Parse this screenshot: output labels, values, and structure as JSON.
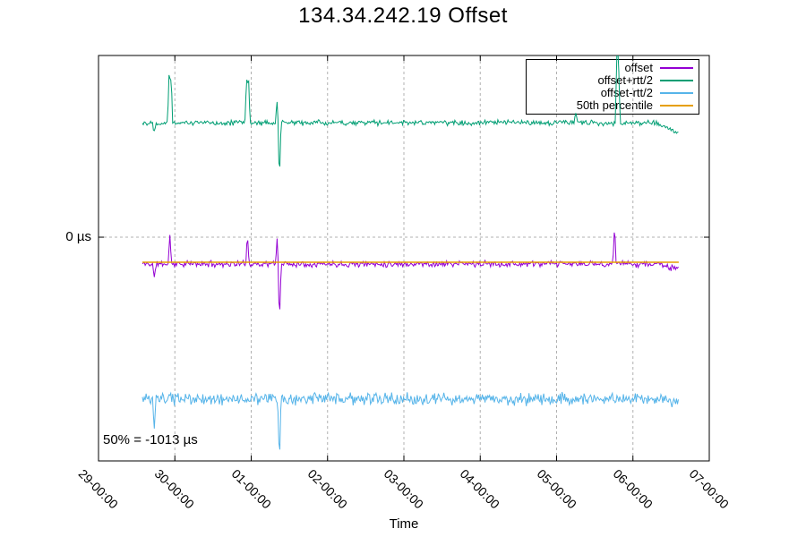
{
  "page": {
    "title": "134.34.242.19 Offset"
  },
  "chart_data": {
    "type": "line",
    "title": "134.34.242.19 Offset",
    "xlabel": "Time",
    "ylabel": "",
    "annotation": "50% = -1013 µs",
    "grid": true,
    "legend": {
      "position": "top-right",
      "entries": [
        {
          "label": "offset",
          "color": "#9400d3"
        },
        {
          "label": "offset+rtt/2",
          "color": "#009e73"
        },
        {
          "label": "offset-rtt/2",
          "color": "#56b4e9"
        },
        {
          "label": "50th percentile",
          "color": "#e69f00"
        }
      ]
    },
    "x_axis": {
      "label": "Time",
      "tick_labels": [
        "29-00:00",
        "30-00:00",
        "01-00:00",
        "02-00:00",
        "03-00:00",
        "04-00:00",
        "05-00:00",
        "06-00:00",
        "07-00:00"
      ],
      "range_days": [
        0,
        8
      ]
    },
    "y_axis": {
      "tick_labels": [
        "0 µs"
      ],
      "tick_values_us": [
        0
      ],
      "range_us": [
        -9050,
        7350
      ],
      "unit": "µs"
    },
    "percentile_50_us": -1013,
    "series": [
      {
        "name": "offset",
        "color": "#9400d3",
        "style": "noisy-line",
        "seed": 11,
        "baseline_us": -1080,
        "noise_us": 150,
        "span_days": [
          0.575,
          7.6
        ],
        "spikes_day_us": [
          [
            0.73,
            -650
          ],
          [
            0.935,
            1200
          ],
          [
            1.95,
            1200
          ],
          [
            2.34,
            1100
          ],
          [
            2.37,
            -2350
          ],
          [
            6.76,
            1550
          ]
        ],
        "end_dip": {
          "start_day": 7.35,
          "drop_us": 250
        }
      },
      {
        "name": "offset+rtt/2",
        "color": "#009e73",
        "style": "noisy-line",
        "seed": 22,
        "baseline_us": 4630,
        "noise_us": 130,
        "span_days": [
          0.575,
          7.6
        ],
        "spikes_day_us": [
          [
            0.73,
            -350
          ],
          [
            0.925,
            2100
          ],
          [
            0.95,
            2000
          ],
          [
            1.94,
            1950
          ],
          [
            1.965,
            1850
          ],
          [
            2.34,
            850
          ],
          [
            2.37,
            -2280
          ],
          [
            6.25,
            450
          ],
          [
            6.79,
            2700
          ],
          [
            6.81,
            2600
          ]
        ],
        "end_dip": {
          "start_day": 7.3,
          "drop_us": 450
        }
      },
      {
        "name": "offset-rtt/2",
        "color": "#56b4e9",
        "style": "noisy-line",
        "seed": 33,
        "baseline_us": -6550,
        "noise_us": 290,
        "span_days": [
          0.575,
          7.6
        ],
        "spikes_day_us": [
          [
            0.73,
            -1400
          ],
          [
            2.37,
            -2600
          ]
        ],
        "end_dip": {
          "start_day": 7.4,
          "drop_us": 150
        }
      },
      {
        "name": "50th percentile",
        "color": "#e69f00",
        "style": "hline",
        "value_us": -1013,
        "span_days": [
          0.575,
          7.6
        ]
      }
    ]
  },
  "colors": {
    "background": "#ffffff",
    "border": "#000000",
    "grid": "#b0b0b0",
    "text": "#000000"
  }
}
